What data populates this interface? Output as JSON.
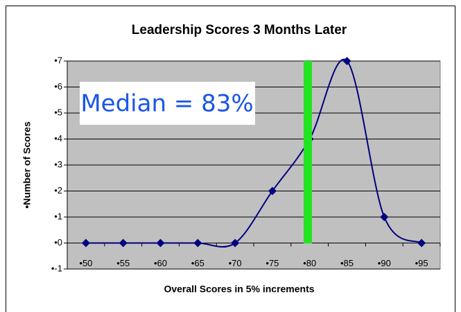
{
  "chart_data": {
    "type": "line",
    "title": "Leadership Scores 3 Months Later",
    "x_label": "Overall Scores in 5% increments",
    "y_label": "•Number of Scores",
    "annotation": "Median = 83%",
    "categories": [
      "•50",
      "•55",
      "•60",
      "•65",
      "•70",
      "•75",
      "•80",
      "•85",
      "•90",
      "•95"
    ],
    "values": [
      0,
      0,
      0,
      0,
      0,
      2,
      4,
      7,
      1,
      0
    ],
    "color": "#000080",
    "ylim": [
      -1,
      7
    ],
    "yticks": [
      {
        "value": -1,
        "label": "•-1"
      },
      {
        "value": 0,
        "label": "•0"
      },
      {
        "value": 1,
        "label": "•1"
      },
      {
        "value": 2,
        "label": "•2"
      },
      {
        "value": 3,
        "label": "•3"
      },
      {
        "value": 4,
        "label": "•4"
      },
      {
        "value": 5,
        "label": "•5"
      },
      {
        "value": 6,
        "label": "•6"
      },
      {
        "value": 7,
        "label": "•7"
      }
    ],
    "grid": true
  }
}
